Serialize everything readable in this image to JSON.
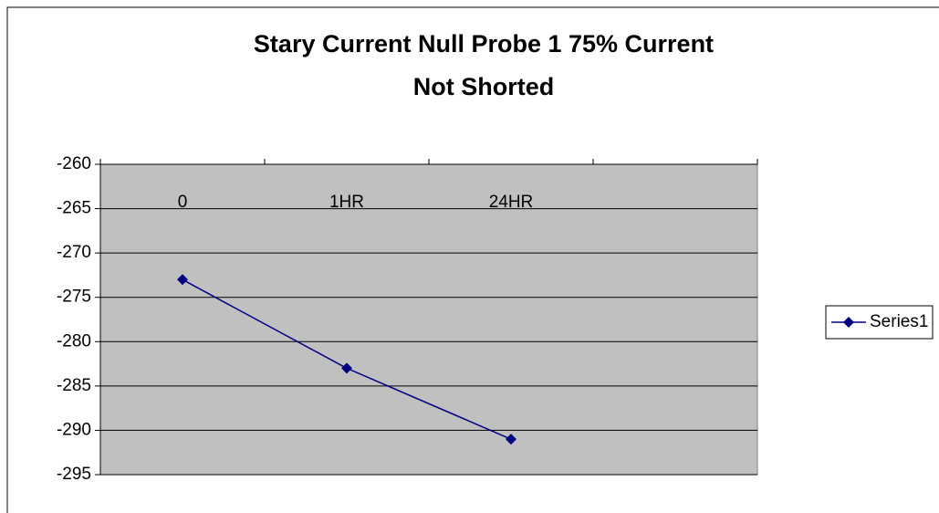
{
  "chart_data": {
    "type": "line",
    "title": [
      "Stary Current Null Probe 1 75% Current",
      "Not Shorted"
    ],
    "categories": [
      "0",
      "1HR",
      "24HR",
      null
    ],
    "series": [
      {
        "name": "Series1",
        "color": "#000080",
        "values": [
          -273,
          -283,
          -291,
          null
        ]
      }
    ],
    "ylim": [
      -295,
      -260
    ],
    "yticks": [
      -260,
      -265,
      -270,
      -275,
      -280,
      -285,
      -290,
      -295
    ],
    "grid": true,
    "legend": "right",
    "plot_background": "#c0c0c0"
  }
}
